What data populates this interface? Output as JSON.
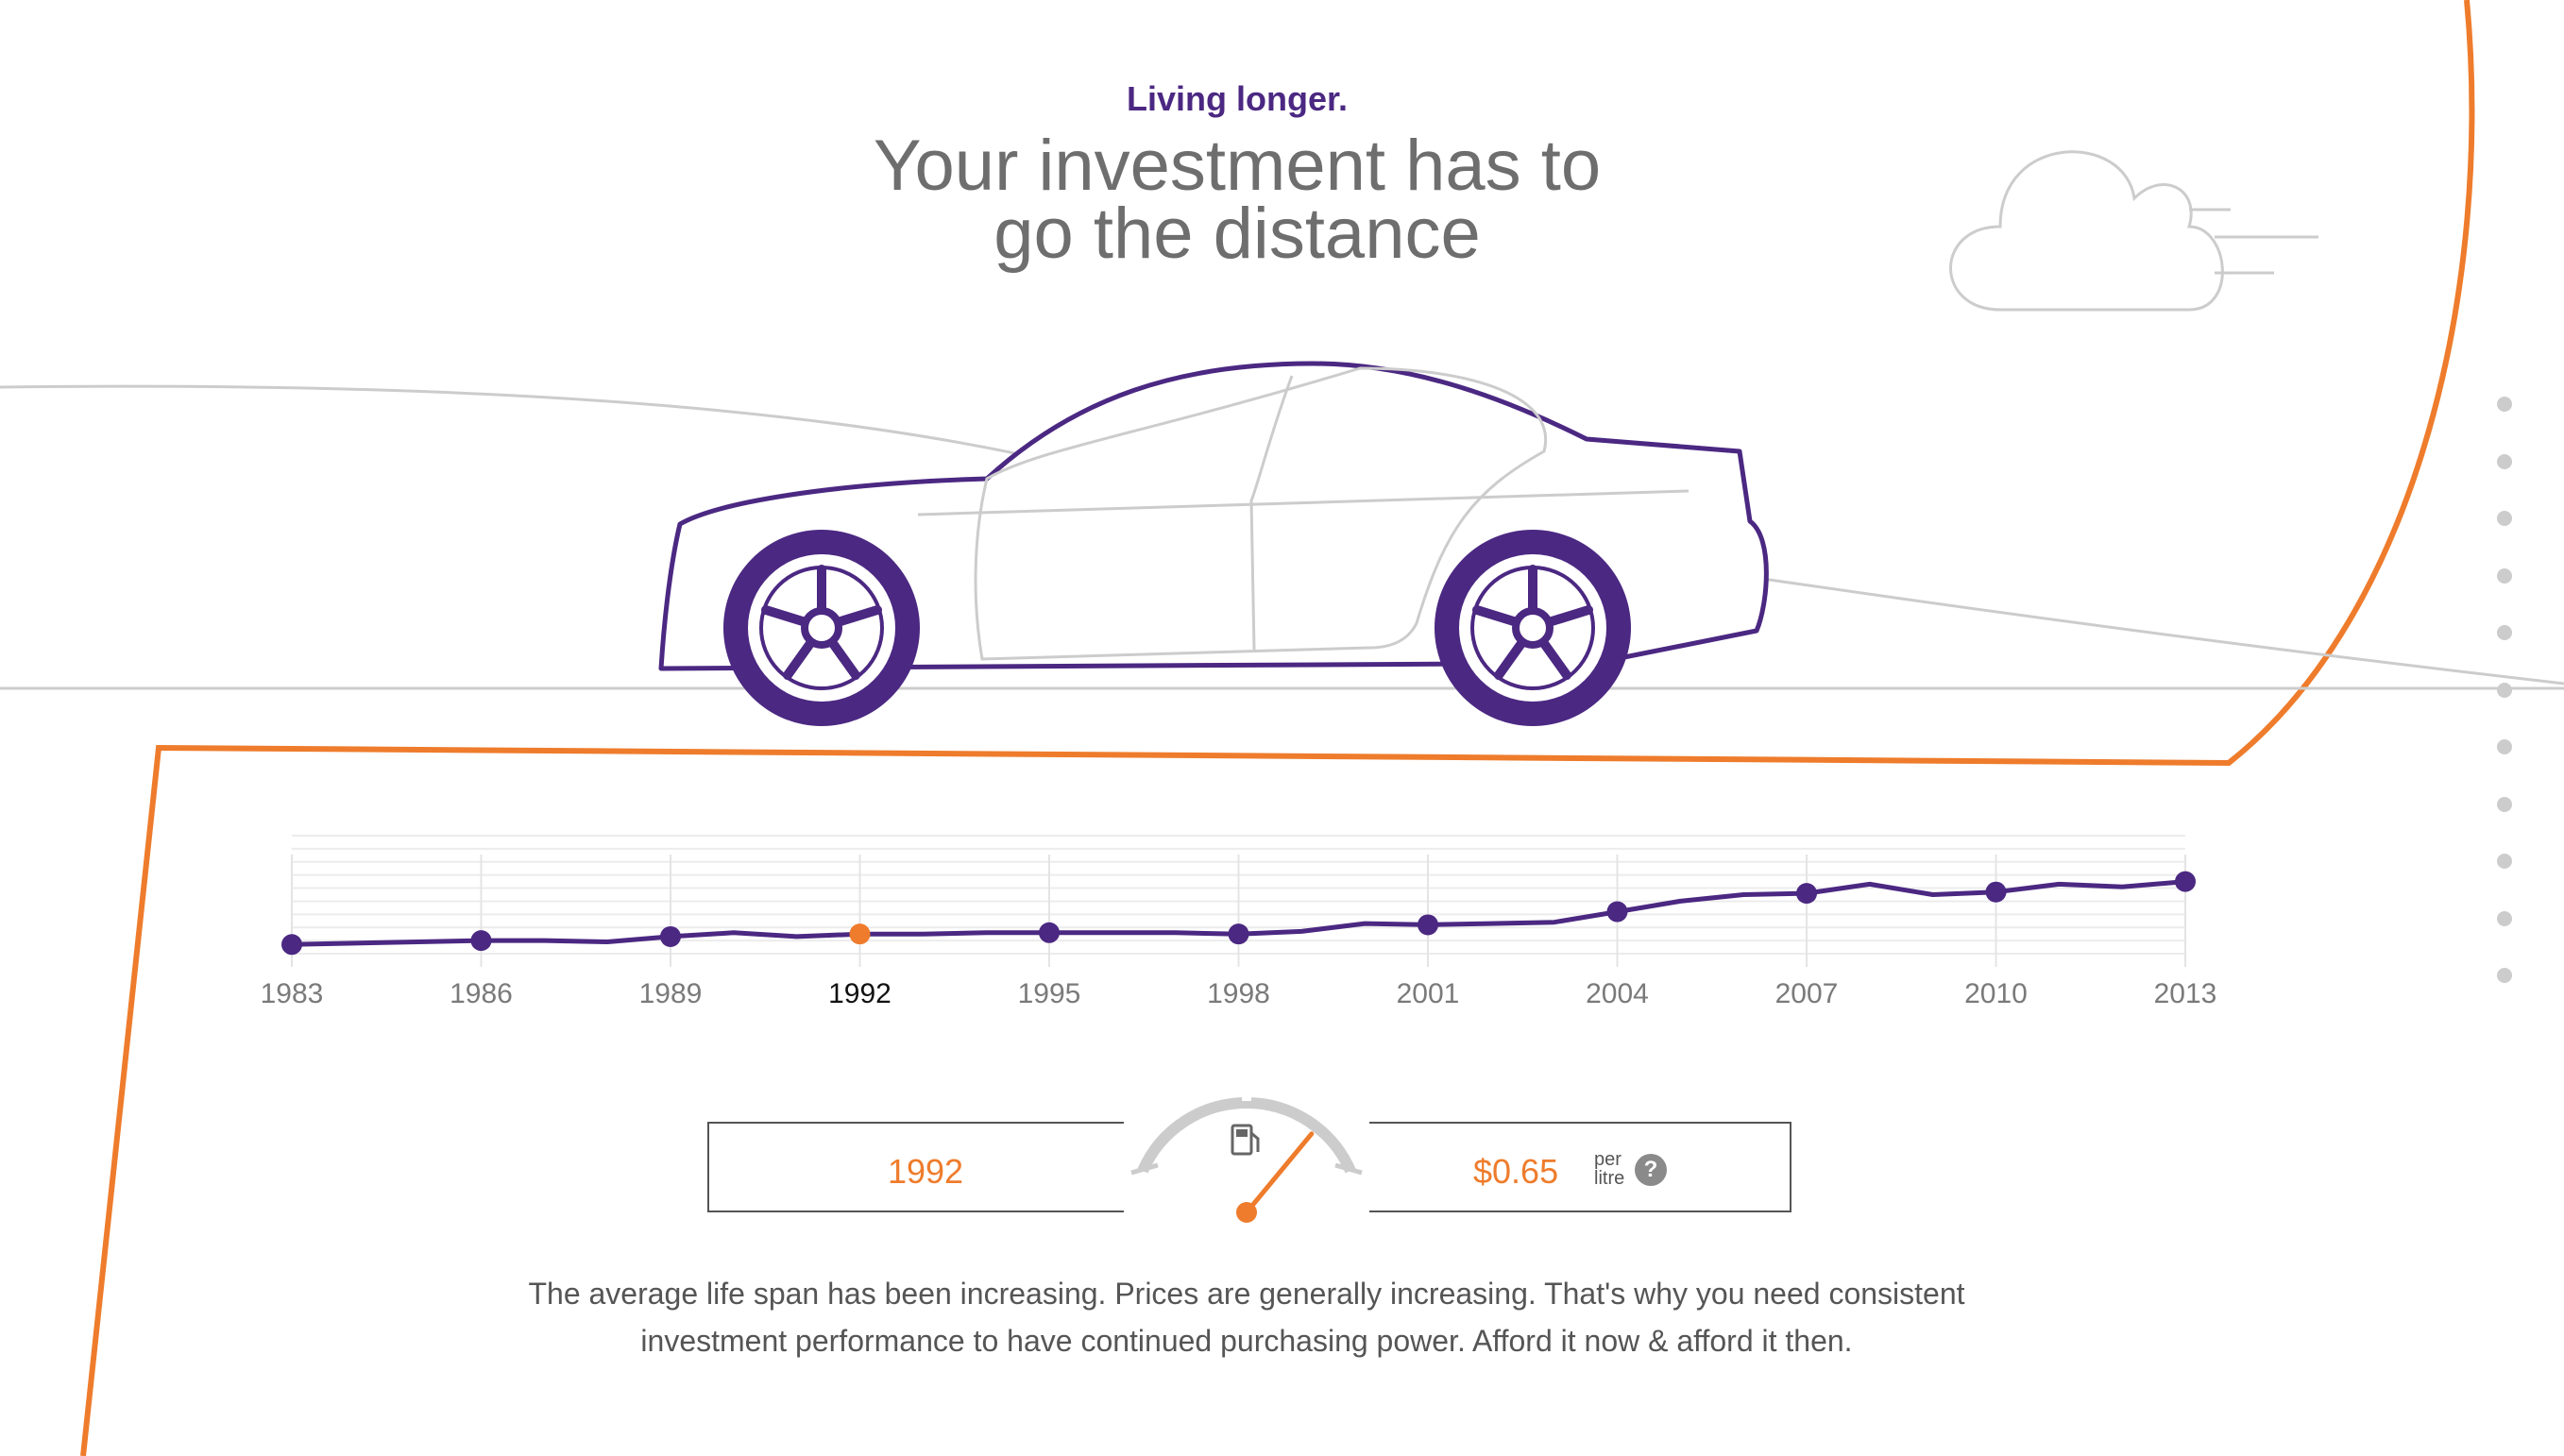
{
  "header": {
    "eyebrow": "Living longer.",
    "title_line1": "Your investment has to",
    "title_line2": "go the distance"
  },
  "chart_data": {
    "type": "line",
    "x_ticks": [
      "1983",
      "1986",
      "1989",
      "1992",
      "1995",
      "1998",
      "2001",
      "2004",
      "2007",
      "2010",
      "2013"
    ],
    "selected_year": "1992",
    "xlim": [
      1983,
      2013
    ],
    "ylim": [
      0.5,
      1.4
    ],
    "grid": true,
    "series": [
      {
        "x": [
          1983,
          1984,
          1985,
          1986,
          1987,
          1988,
          1989,
          1990,
          1991,
          1992,
          1993,
          1994,
          1995,
          1996,
          1997,
          1998,
          1999,
          2000,
          2001,
          2002,
          2003,
          2004,
          2005,
          2006,
          2007,
          2008,
          2009,
          2010,
          2011,
          2012,
          2013
        ],
        "values": [
          0.57,
          0.58,
          0.59,
          0.6,
          0.6,
          0.59,
          0.63,
          0.66,
          0.63,
          0.65,
          0.65,
          0.66,
          0.66,
          0.66,
          0.66,
          0.65,
          0.67,
          0.73,
          0.72,
          0.73,
          0.74,
          0.82,
          0.9,
          0.95,
          0.96,
          1.03,
          0.95,
          0.97,
          1.03,
          1.01,
          1.05
        ]
      }
    ],
    "markers": [
      {
        "x": 1983,
        "y": 0.57
      },
      {
        "x": 1986,
        "y": 0.6
      },
      {
        "x": 1989,
        "y": 0.63
      },
      {
        "x": 1992,
        "y": 0.65
      },
      {
        "x": 1995,
        "y": 0.66
      },
      {
        "x": 1998,
        "y": 0.65
      },
      {
        "x": 2001,
        "y": 0.72
      },
      {
        "x": 2004,
        "y": 0.82
      },
      {
        "x": 2007,
        "y": 0.96
      },
      {
        "x": 2010,
        "y": 0.97
      },
      {
        "x": 2013,
        "y": 1.05
      }
    ]
  },
  "readout": {
    "year": "1992",
    "price": "$0.65",
    "unit_line1": "per",
    "unit_line2": "litre",
    "help_label": "?"
  },
  "gauge": {
    "level": 0.72,
    "icon": "fuel-pump-icon"
  },
  "body": {
    "line1": "The average life span has been increasing. Prices are generally increasing. That's why you need consistent",
    "line2": "investment performance to have continued purchasing power. Afford it now & afford it then."
  },
  "side_nav": {
    "count": 11
  },
  "colors": {
    "purple": "#4b2882",
    "orange": "#ee7c2c",
    "gray_line": "#cccccc"
  }
}
